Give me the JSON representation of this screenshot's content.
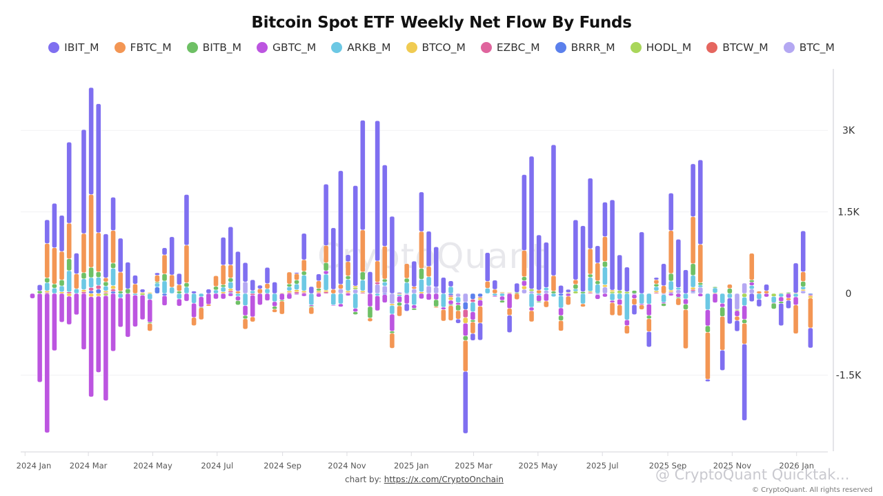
{
  "title": "Bitcoin Spot ETF Weekly Net Flow By Funds",
  "watermark": "CryptoQuant",
  "credit": {
    "prefix": "chart by: ",
    "link": "https://x.com/CryptoOnchain"
  },
  "footer_watermark": "@ CryptoQuant Quicktak...",
  "footer_copyright": "© CryptoQuant. All rights reserved",
  "chart_data": {
    "type": "bar",
    "stacked": true,
    "title": "Bitcoin Spot ETF Weekly Net Flow By Funds",
    "legend_placement": "top-center",
    "grid": true,
    "ylim": [
      -2900,
      4130
    ],
    "y_axis_side": "right",
    "y_ticks": [
      {
        "value": 3000,
        "label": "3K"
      },
      {
        "value": 1500,
        "label": "1.5K"
      },
      {
        "value": 0,
        "label": "0"
      },
      {
        "value": -1500,
        "label": "-1.5K"
      }
    ],
    "x_ticks": [
      {
        "date": "2024-01-01",
        "label": "2024 Jan"
      },
      {
        "date": "2024-03-01",
        "label": "2024 Mar"
      },
      {
        "date": "2024-05-01",
        "label": "2024 May"
      },
      {
        "date": "2024-07-01",
        "label": "2024 Jul"
      },
      {
        "date": "2024-09-01",
        "label": "2024 Sep"
      },
      {
        "date": "2024-11-01",
        "label": "2024 Nov"
      },
      {
        "date": "2025-01-01",
        "label": "2025 Jan"
      },
      {
        "date": "2025-03-01",
        "label": "2025 Mar"
      },
      {
        "date": "2025-05-01",
        "label": "2025 May"
      },
      {
        "date": "2025-07-01",
        "label": "2025 Jul"
      },
      {
        "date": "2025-09-01",
        "label": "2025 Sep"
      },
      {
        "date": "2025-11-01",
        "label": "2025 Nov"
      },
      {
        "date": "2026-01-01",
        "label": "2026 Jan"
      }
    ],
    "x_start": "2024-01-08",
    "x_interval_days": 7,
    "series": [
      {
        "name": "IBIT_M",
        "color": "#7f6ff0"
      },
      {
        "name": "FBTC_M",
        "color": "#f39654"
      },
      {
        "name": "BITB_M",
        "color": "#6ec065"
      },
      {
        "name": "GBTC_M",
        "color": "#bc55e0"
      },
      {
        "name": "ARKB_M",
        "color": "#6cc8e4"
      },
      {
        "name": "BTCO_M",
        "color": "#f0cb52"
      },
      {
        "name": "EZBC_M",
        "color": "#df649d"
      },
      {
        "name": "BRRR_M",
        "color": "#5b80ec"
      },
      {
        "name": "HODL_M",
        "color": "#a9d65a"
      },
      {
        "name": "BTCW_M",
        "color": "#e5665f"
      },
      {
        "name": "BTC_M",
        "color": "#b4a8f2"
      }
    ],
    "weeks": [
      [
        0,
        0,
        0,
        -90,
        0,
        0,
        0,
        0,
        0,
        0,
        0
      ],
      [
        110,
        0,
        50,
        -1630,
        0,
        0,
        0,
        0,
        0,
        0,
        0
      ],
      [
        436,
        632,
        87,
        -2560,
        150,
        30,
        20,
        0,
        0,
        0,
        0
      ],
      [
        815,
        667,
        75,
        -1050,
        100,
        0,
        0,
        0,
        0,
        0,
        0
      ],
      [
        663,
        523,
        110,
        -527,
        110,
        30,
        0,
        0,
        0,
        0,
        0
      ],
      [
        1490,
        654,
        218,
        -520,
        390,
        -50,
        30,
        0,
        0,
        0,
        0
      ],
      [
        380,
        275,
        0,
        -390,
        87,
        0,
        0,
        0,
        0,
        0,
        0
      ],
      [
        1910,
        720,
        113,
        -1030,
        200,
        40,
        30,
        0,
        0,
        0,
        0
      ],
      [
        1966,
        1340,
        187,
        -1840,
        183,
        -60,
        60,
        50,
        0,
        0,
        0
      ],
      [
        2370,
        720,
        100,
        -1400,
        148,
        -50,
        70,
        80,
        0,
        0,
        0
      ],
      [
        806,
        74,
        78,
        -1930,
        87,
        30,
        20,
        0,
        -40,
        0,
        0
      ],
      [
        610,
        600,
        96,
        -1060,
        318,
        65,
        40,
        40,
        0,
        0,
        0
      ],
      [
        623,
        350,
        43,
        -536,
        -80,
        0,
        0,
        0,
        0,
        0,
        0
      ],
      [
        488,
        0,
        87,
        -800,
        0,
        0,
        0,
        0,
        0,
        0,
        0
      ],
      [
        160,
        175,
        0,
        -580,
        -30,
        0,
        0,
        0,
        0,
        0,
        0
      ],
      [
        60,
        0,
        0,
        -450,
        0,
        20,
        0,
        0,
        -30,
        0,
        0
      ],
      [
        0,
        -140,
        -20,
        -420,
        -110,
        20,
        0,
        0,
        0,
        0,
        0
      ],
      [
        44,
        122,
        22,
        0,
        74,
        0,
        0,
        118,
        0,
        0,
        0
      ],
      [
        130,
        350,
        130,
        -180,
        230,
        0,
        0,
        -40,
        0,
        0,
        0
      ],
      [
        700,
        227,
        0,
        0,
        115,
        0,
        0,
        0,
        0,
        0,
        0
      ],
      [
        205,
        118,
        44,
        -130,
        -100,
        0,
        0,
        0,
        0,
        0,
        0
      ],
      [
        930,
        693,
        78,
        -140,
        118,
        0,
        0,
        0,
        0,
        0,
        0
      ],
      [
        44,
        -150,
        0,
        -260,
        -180,
        0,
        0,
        0,
        0,
        0,
        0
      ],
      [
        0,
        -220,
        -10,
        -190,
        -60,
        0,
        0,
        0,
        0,
        0,
        0
      ],
      [
        80,
        -30,
        0,
        -200,
        0,
        0,
        0,
        0,
        0,
        0,
        0
      ],
      [
        0,
        196,
        65,
        -100,
        65,
        0,
        0,
        0,
        0,
        0,
        0
      ],
      [
        510,
        362,
        44,
        -100,
        87,
        30,
        0,
        0,
        0,
        0,
        0
      ],
      [
        700,
        240,
        74,
        -50,
        122,
        40,
        30,
        20,
        0,
        0,
        0
      ],
      [
        728,
        44,
        -80,
        -80,
        -50,
        0,
        0,
        0,
        0,
        0,
        0
      ],
      [
        353,
        -190,
        -60,
        -183,
        -222,
        0,
        0,
        0,
        0,
        0,
        214
      ],
      [
        200,
        -90,
        0,
        -400,
        52,
        0,
        -30,
        0,
        0,
        0,
        0
      ],
      [
        65,
        87,
        0,
        -210,
        0,
        0,
        0,
        0,
        0,
        0,
        0
      ],
      [
        296,
        96,
        0,
        -130,
        87,
        0,
        0,
        0,
        0,
        0,
        0
      ],
      [
        210,
        -57,
        -52,
        -87,
        -150,
        0,
        0,
        0,
        0,
        0,
        0
      ],
      [
        0,
        -240,
        -20,
        -120,
        0,
        10,
        0,
        0,
        0,
        0,
        0
      ],
      [
        0,
        218,
        52,
        -100,
        74,
        30,
        20,
        0,
        0,
        0,
        0
      ],
      [
        20,
        118,
        72,
        -20,
        105,
        40,
        30,
        0,
        0,
        0,
        0
      ],
      [
        485,
        211,
        72,
        -50,
        287,
        30,
        20,
        0,
        0,
        0,
        0
      ],
      [
        127,
        -127,
        -20,
        -20,
        -211,
        0,
        0,
        0,
        0,
        0,
        0
      ],
      [
        127,
        140,
        42,
        -63,
        0,
        30,
        20,
        0,
        0,
        0,
        0
      ],
      [
        1127,
        317,
        148,
        63,
        295,
        30,
        30,
        0,
        0,
        0,
        0
      ],
      [
        1131,
        76,
        0,
        -10,
        -211,
        0,
        0,
        0,
        0,
        0,
        0
      ],
      [
        2089,
        84,
        0,
        -55,
        -190,
        0,
        0,
        0,
        0,
        0,
        84
      ],
      [
        127,
        262,
        63,
        -40,
        211,
        30,
        20,
        0,
        0,
        0,
        0
      ],
      [
        1844,
        0,
        -50,
        -63,
        -274,
        30,
        0,
        0,
        33,
        0,
        76
      ],
      [
        2017,
        772,
        148,
        0,
        198,
        30,
        20,
        0,
        0,
        0,
        0
      ],
      [
        400,
        -63,
        -211,
        -240,
        0,
        0,
        0,
        0,
        0,
        0,
        0
      ],
      [
        2578,
        388,
        0,
        -274,
        -42,
        0,
        42,
        0,
        0,
        0,
        168
      ],
      [
        1494,
        603,
        55,
        -148,
        72,
        0,
        0,
        -20,
        0,
        0,
        139
      ],
      [
        1418,
        -274,
        -40,
        -312,
        -160,
        -30,
        0,
        0,
        0,
        0,
        -190
      ],
      [
        20,
        -190,
        -63,
        -114,
        -30,
        -20,
        0,
        0,
        0,
        0,
        0
      ],
      [
        -135,
        270,
        76,
        -169,
        203,
        0,
        0,
        0,
        0,
        0,
        -20
      ],
      [
        468,
        42,
        -30,
        -63,
        -211,
        0,
        0,
        0,
        0,
        0,
        84
      ],
      [
        726,
        680,
        198,
        -97,
        232,
        30,
        0,
        0,
        0,
        0,
        0
      ],
      [
        646,
        190,
        0,
        -118,
        169,
        0,
        0,
        0,
        0,
        0,
        139
      ],
      [
        739,
        -20,
        -127,
        -114,
        0,
        0,
        0,
        0,
        0,
        0,
        118
      ],
      [
        295,
        -211,
        0,
        -42,
        -253,
        0,
        0,
        0,
        0,
        0,
        0
      ],
      [
        105,
        -274,
        -20,
        -76,
        127,
        -63,
        -30,
        -33,
        0,
        0,
        0
      ],
      [
        -76,
        -156,
        -105,
        -42,
        -105,
        0,
        0,
        0,
        0,
        0,
        -63
      ],
      [
        -1139,
        -570,
        -84,
        -232,
        0,
        -105,
        -147,
        -135,
        0,
        0,
        -160
      ],
      [
        -127,
        -211,
        -40,
        -148,
        -177,
        0,
        -55,
        -105,
        0,
        0,
        0
      ],
      [
        -316,
        -308,
        0,
        -114,
        0,
        -40,
        -20,
        -60,
        0,
        0,
        0
      ],
      [
        527,
        127,
        0,
        0,
        97,
        0,
        0,
        0,
        0,
        0,
        0
      ],
      [
        169,
        76,
        0,
        -20,
        -40,
        0,
        0,
        0,
        0,
        0,
        0
      ],
      [
        0,
        0,
        -42,
        -76,
        -50,
        10,
        10,
        0,
        10,
        0,
        0
      ],
      [
        -316,
        -127,
        0,
        -274,
        0,
        10,
        10,
        0,
        0,
        0,
        0
      ],
      [
        169,
        -110,
        20,
        0,
        0,
        0,
        0,
        0,
        0,
        0,
        0
      ],
      [
        1392,
        485,
        72,
        97,
        0,
        63,
        0,
        0,
        0,
        0,
        76
      ],
      [
        2439,
        -203,
        0,
        -63,
        -253,
        0,
        0,
        0,
        42,
        0,
        42
      ],
      [
        1013,
        63,
        -20,
        -114,
        -30,
        0,
        0,
        0,
        0,
        0,
        0
      ],
      [
        831,
        -114,
        0,
        -139,
        55,
        0,
        0,
        0,
        0,
        0,
        55
      ],
      [
        2405,
        287,
        42,
        0,
        -59,
        0,
        0,
        0,
        0,
        0,
        0
      ],
      [
        148,
        -190,
        -93,
        -139,
        -224,
        0,
        0,
        -42,
        0,
        0,
        0
      ],
      [
        55,
        -160,
        0,
        -50,
        0,
        10,
        0,
        0,
        10,
        0,
        0
      ],
      [
        1101,
        84,
        84,
        0,
        42,
        0,
        0,
        0,
        42,
        0,
        0
      ],
      [
        1211,
        -55,
        34,
        0,
        -190,
        0,
        0,
        0,
        0,
        0,
        0
      ],
      [
        1296,
        468,
        59,
        0,
        257,
        20,
        20,
        0,
        0,
        0,
        0
      ],
      [
        316,
        329,
        63,
        -84,
        169,
        0,
        0,
        0,
        0,
        0,
        -20
      ],
      [
        633,
        456,
        105,
        -63,
        325,
        42,
        0,
        0,
        0,
        0,
        118
      ],
      [
        1658,
        -232,
        0,
        -42,
        -127,
        30,
        0,
        0,
        33,
        0,
        0
      ],
      [
        654,
        -198,
        0,
        -105,
        -105,
        0,
        0,
        0,
        55,
        0,
        0
      ],
      [
        451,
        -148,
        0,
        -105,
        -485,
        0,
        0,
        0,
        34,
        0,
        0
      ],
      [
        -181,
        -114,
        55,
        -72,
        0,
        0,
        0,
        0,
        0,
        0,
        -20
      ],
      [
        1131,
        -84,
        0,
        -20,
        -190,
        0,
        0,
        0,
        0,
        0,
        0
      ],
      [
        -283,
        -236,
        -59,
        -211,
        -194,
        0,
        0,
        0,
        0,
        0,
        0
      ],
      [
        42,
        76,
        50,
        0,
        76,
        30,
        20,
        0,
        0,
        0,
        0
      ],
      [
        405,
        143,
        -50,
        -20,
        -143,
        0,
        0,
        0,
        0,
        0,
        -20
      ],
      [
        688,
        789,
        139,
        -40,
        169,
        30,
        15,
        15,
        0,
        0,
        0
      ],
      [
        886,
        -127,
        -20,
        -68,
        42,
        0,
        0,
        0,
        0,
        0,
        68
      ],
      [
        435,
        -717,
        -97,
        -97,
        -101,
        0,
        0,
        0,
        0,
        0,
        0
      ],
      [
        970,
        865,
        215,
        0,
        219,
        40,
        30,
        20,
        0,
        0,
        24
      ],
      [
        1553,
        705,
        42,
        -55,
        42,
        0,
        0,
        0,
        0,
        0,
        114
      ],
      [
        -40,
        -865,
        -118,
        -295,
        -300,
        0,
        0,
        0,
        0,
        0,
        0
      ],
      [
        0,
        0,
        20,
        -169,
        93,
        10,
        0,
        0,
        0,
        0,
        0
      ],
      [
        -371,
        -620,
        -169,
        -72,
        -181,
        0,
        0,
        0,
        0,
        0,
        0
      ],
      [
        -473,
        76,
        93,
        0,
        -84,
        0,
        0,
        0,
        0,
        0,
        0
      ],
      [
        -198,
        -76,
        0,
        -105,
        0,
        0,
        0,
        0,
        -20,
        0,
        -295
      ],
      [
        -1405,
        -380,
        -72,
        -253,
        -156,
        0,
        0,
        0,
        -68,
        0,
        190
      ],
      [
        -148,
        490,
        42,
        59,
        68,
        0,
        0,
        0,
        0,
        0,
        80
      ],
      [
        -135,
        42,
        0,
        0,
        -105,
        0,
        0,
        0,
        0,
        0,
        0
      ],
      [
        118,
        50,
        0,
        -63,
        0,
        0,
        0,
        0,
        0,
        0,
        0
      ],
      [
        0,
        0,
        -105,
        -10,
        -114,
        0,
        0,
        0,
        -55,
        0,
        0
      ],
      [
        -410,
        0,
        -34,
        -84,
        -63,
        10,
        0,
        0,
        0,
        0,
        0
      ],
      [
        -148,
        -42,
        20,
        -84,
        0,
        0,
        0,
        0,
        0,
        0,
        0
      ],
      [
        549,
        -527,
        0,
        -148,
        -63,
        10,
        0,
        0,
        0,
        0,
        0
      ],
      [
        751,
        177,
        97,
        0,
        50,
        25,
        0,
        0,
        0,
        0,
        50
      ],
      [
        -367,
        -549,
        0,
        0,
        0,
        -40,
        -20,
        -24,
        0,
        0,
        0
      ]
    ]
  }
}
